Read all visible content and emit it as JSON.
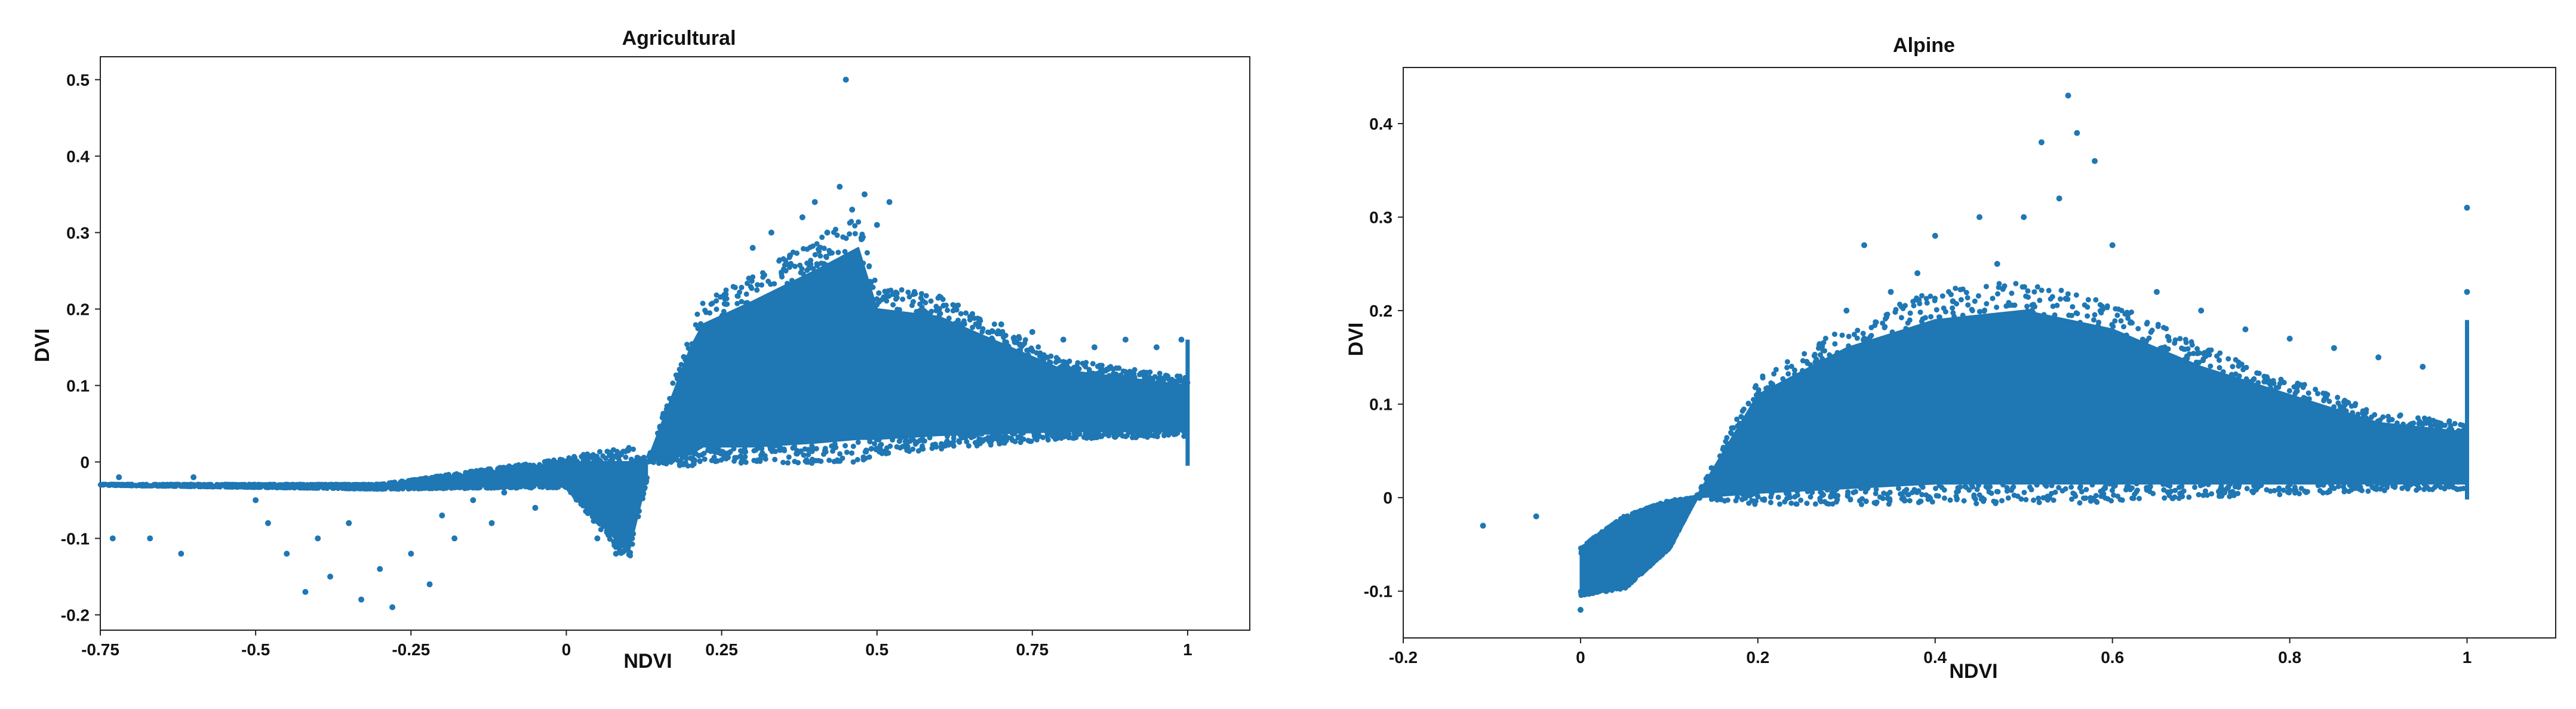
{
  "chart_data": [
    {
      "type": "scatter",
      "title": "Agricultural",
      "xlabel": "NDVI",
      "ylabel": "DVI",
      "xlim": [
        -0.75,
        1.1
      ],
      "ylim": [
        -0.22,
        0.53
      ],
      "xticks": [
        -0.75,
        -0.5,
        -0.25,
        0,
        0.25,
        0.5,
        0.75,
        1
      ],
      "xtick_labels": [
        "-0.75",
        "-0.5",
        "-0.25",
        "0",
        "0.25",
        "0.5",
        "0.75",
        "1"
      ],
      "yticks": [
        -0.2,
        -0.1,
        0,
        0.1,
        0.2,
        0.3,
        0.4,
        0.5
      ],
      "ytick_labels": [
        "-0.2",
        "-0.1",
        "0",
        "0.1",
        "0.2",
        "0.3",
        "0.4",
        "0.5"
      ],
      "grid": false,
      "marker_color": "#1f77b4",
      "density_bands": [
        {
          "x": [
            -0.75,
            -0.3,
            0.0,
            0.1,
            0.13
          ],
          "y_low": [
            -0.03,
            -0.035,
            -0.03,
            -0.12,
            -0.02
          ],
          "y_high": [
            -0.03,
            -0.03,
            0.0,
            0.0,
            0.0
          ]
        },
        {
          "x": [
            0.13,
            0.2,
            0.22,
            0.3,
            0.4,
            0.47,
            0.5,
            0.6,
            0.8,
            1.0
          ],
          "y_low": [
            0.0,
            0.01,
            0.02,
            0.02,
            0.025,
            0.03,
            0.03,
            0.035,
            0.04,
            0.04
          ],
          "y_high": [
            0.0,
            0.15,
            0.18,
            0.21,
            0.25,
            0.28,
            0.2,
            0.19,
            0.12,
            0.1
          ]
        }
      ],
      "points": [
        [
          -0.73,
          -0.1
        ],
        [
          -0.72,
          -0.02
        ],
        [
          -0.7,
          -0.03
        ],
        [
          -0.67,
          -0.1
        ],
        [
          -0.62,
          -0.12
        ],
        [
          -0.6,
          -0.02
        ],
        [
          -0.55,
          -0.03
        ],
        [
          -0.5,
          -0.05
        ],
        [
          -0.48,
          -0.08
        ],
        [
          -0.45,
          -0.12
        ],
        [
          -0.42,
          -0.17
        ],
        [
          -0.4,
          -0.1
        ],
        [
          -0.38,
          -0.15
        ],
        [
          -0.35,
          -0.08
        ],
        [
          -0.33,
          -0.18
        ],
        [
          -0.3,
          -0.14
        ],
        [
          -0.28,
          -0.19
        ],
        [
          -0.25,
          -0.12
        ],
        [
          -0.22,
          -0.16
        ],
        [
          -0.2,
          -0.07
        ],
        [
          -0.18,
          -0.1
        ],
        [
          -0.15,
          -0.05
        ],
        [
          -0.12,
          -0.08
        ],
        [
          -0.1,
          -0.04
        ],
        [
          -0.05,
          -0.06
        ],
        [
          0.0,
          -0.03
        ],
        [
          0.05,
          -0.1
        ],
        [
          0.08,
          -0.12
        ],
        [
          0.1,
          -0.09
        ],
        [
          0.3,
          0.28
        ],
        [
          0.33,
          0.3
        ],
        [
          0.36,
          0.27
        ],
        [
          0.38,
          0.32
        ],
        [
          0.4,
          0.34
        ],
        [
          0.42,
          0.3
        ],
        [
          0.44,
          0.36
        ],
        [
          0.45,
          0.5
        ],
        [
          0.46,
          0.33
        ],
        [
          0.48,
          0.35
        ],
        [
          0.5,
          0.31
        ],
        [
          0.52,
          0.34
        ],
        [
          0.6,
          0.2
        ],
        [
          0.65,
          0.19
        ],
        [
          0.7,
          0.18
        ],
        [
          0.75,
          0.17
        ],
        [
          0.8,
          0.16
        ],
        [
          0.85,
          0.15
        ],
        [
          0.9,
          0.16
        ],
        [
          0.95,
          0.15
        ],
        [
          0.99,
          0.16
        ]
      ]
    },
    {
      "type": "scatter",
      "title": "Alpine",
      "xlabel": "NDVI",
      "ylabel": "DVI",
      "xlim": [
        -0.2,
        1.1
      ],
      "ylim": [
        -0.15,
        0.46
      ],
      "xticks": [
        -0.2,
        0,
        0.2,
        0.4,
        0.6,
        0.8,
        1
      ],
      "xtick_labels": [
        "-0.2",
        "0",
        "0.2",
        "0.4",
        "0.6",
        "0.8",
        "1"
      ],
      "yticks": [
        -0.1,
        0,
        0.1,
        0.2,
        0.3,
        0.4
      ],
      "ytick_labels": [
        "-0.1",
        "0",
        "0.1",
        "0.2",
        "0.3",
        "0.4"
      ],
      "grid": false,
      "marker_color": "#1f77b4",
      "density_bands": [
        {
          "x": [
            0.0,
            0.05,
            0.1,
            0.13
          ],
          "y_low": [
            -0.1,
            -0.09,
            -0.05,
            0.0
          ],
          "y_high": [
            -0.06,
            -0.03,
            -0.01,
            0.0
          ]
        },
        {
          "x": [
            0.13,
            0.2,
            0.3,
            0.4,
            0.5,
            0.6,
            0.7,
            0.8,
            0.9,
            1.0
          ],
          "y_low": [
            0.0,
            0.005,
            0.01,
            0.015,
            0.015,
            0.015,
            0.015,
            0.015,
            0.015,
            0.015
          ],
          "y_high": [
            0.0,
            0.11,
            0.16,
            0.19,
            0.2,
            0.18,
            0.14,
            0.11,
            0.08,
            0.07
          ]
        }
      ],
      "points": [
        [
          -0.11,
          -0.03
        ],
        [
          -0.05,
          -0.02
        ],
        [
          0.0,
          -0.12
        ],
        [
          0.02,
          -0.1
        ],
        [
          0.04,
          -0.08
        ],
        [
          0.06,
          -0.07
        ],
        [
          0.3,
          0.2
        ],
        [
          0.32,
          0.27
        ],
        [
          0.35,
          0.22
        ],
        [
          0.38,
          0.24
        ],
        [
          0.4,
          0.28
        ],
        [
          0.42,
          0.21
        ],
        [
          0.45,
          0.3
        ],
        [
          0.47,
          0.25
        ],
        [
          0.5,
          0.3
        ],
        [
          0.52,
          0.38
        ],
        [
          0.54,
          0.32
        ],
        [
          0.55,
          0.43
        ],
        [
          0.56,
          0.39
        ],
        [
          0.58,
          0.36
        ],
        [
          0.6,
          0.27
        ],
        [
          0.65,
          0.22
        ],
        [
          0.7,
          0.2
        ],
        [
          0.75,
          0.18
        ],
        [
          0.8,
          0.17
        ],
        [
          0.85,
          0.16
        ],
        [
          0.9,
          0.15
        ],
        [
          0.95,
          0.14
        ],
        [
          1.0,
          0.31
        ],
        [
          1.0,
          0.22
        ]
      ]
    }
  ]
}
